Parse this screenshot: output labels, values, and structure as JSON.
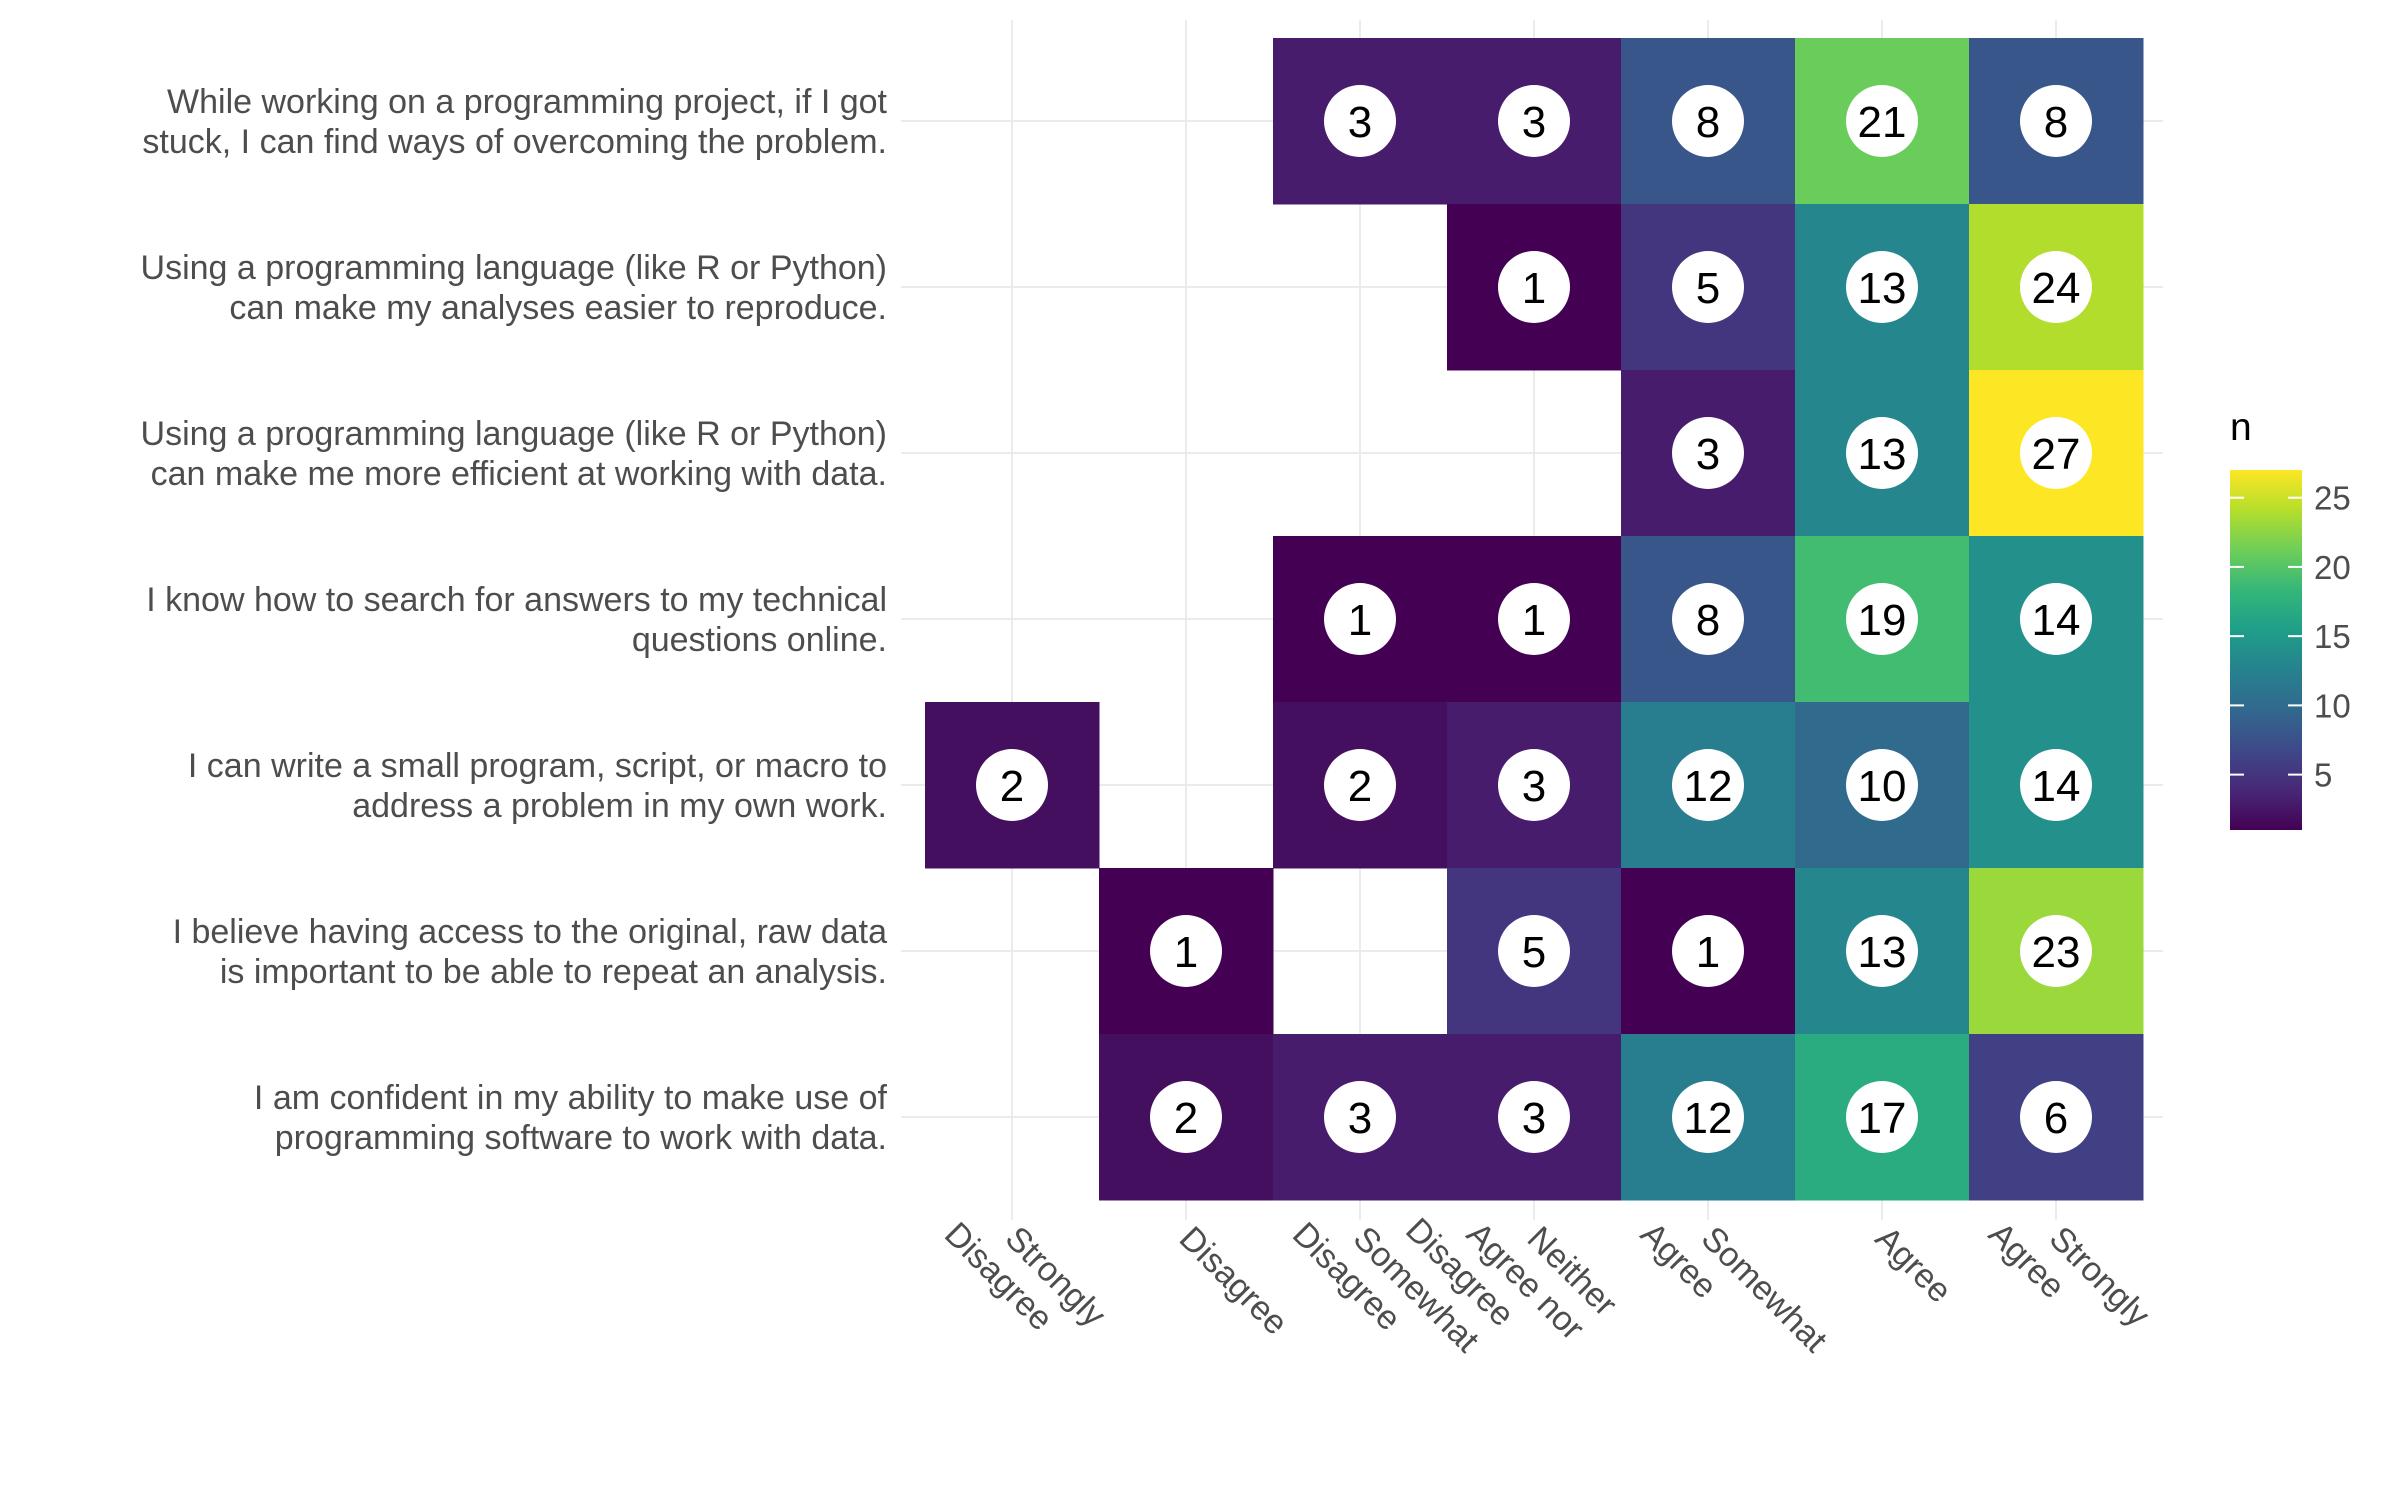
{
  "chart_data": {
    "type": "heatmap",
    "x_categories": [
      "Strongly\nDisagree",
      "Disagree",
      "Somewhat\nDisagree",
      "Neither\nAgree nor\nDisagree",
      "Somewhat\nAgree",
      "Agree",
      "Strongly\nAgree"
    ],
    "y_categories": [
      "While working on a programming project, if I got\nstuck, I can find ways of overcoming the problem.",
      "Using a programming language (like R or Python)\ncan make my analyses easier to reproduce.",
      "Using a programming language (like R or Python)\ncan make me more efficient at working with data.",
      "I know how to search for answers to my technical\nquestions online.",
      "I can write a small program, script, or macro to\naddress a problem in my own work.",
      "I believe having access to the original, raw data\nis important to be able to repeat an analysis.",
      "I am confident in my ability to make use of\nprogramming software to work with data."
    ],
    "values": [
      [
        null,
        null,
        3,
        3,
        8,
        21,
        8
      ],
      [
        null,
        null,
        null,
        1,
        5,
        13,
        24
      ],
      [
        null,
        null,
        null,
        null,
        3,
        13,
        27
      ],
      [
        null,
        null,
        1,
        1,
        8,
        19,
        14
      ],
      [
        2,
        null,
        2,
        3,
        12,
        10,
        14
      ],
      [
        null,
        1,
        null,
        5,
        1,
        13,
        23
      ],
      [
        null,
        2,
        3,
        3,
        12,
        17,
        6
      ]
    ],
    "legend": {
      "title": "n",
      "placement": "right",
      "colormap": "viridis",
      "range": [
        1,
        27
      ],
      "ticks": [
        5,
        10,
        15,
        20,
        25
      ]
    },
    "grid": true,
    "xlabel": "",
    "ylabel": ""
  }
}
